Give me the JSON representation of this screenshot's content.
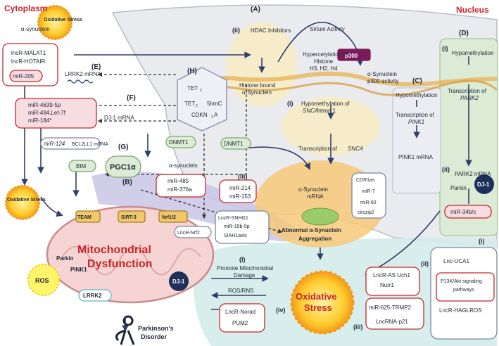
{
  "labels": {
    "cytoplasm": "Cytoplasm",
    "nucleus": "Nucleus",
    "oxidative_stress_top": "Oxidative Stress",
    "alpha_syn_top": "α-synuclein",
    "sec_A": "(A)",
    "sec_B": "(B)",
    "sec_C": "(C)",
    "sec_D": "(D)",
    "sec_E": "(E)",
    "sec_F": "(F)",
    "sec_G": "(G)",
    "sec_H": "(H)",
    "a_ii": "(ii)",
    "hdac": "HDAC Inhibitors",
    "sirtuin": "Sirtuin Acitivty",
    "histone_bound_1": "Histone bound",
    "histone_bound_2": "α-Synuclein",
    "hyper_1": "Hypercetylation of",
    "hyper_2": "Histone",
    "hyper_3": "H3, H2, H4",
    "asyn_p300_1": "α-Synuclein",
    "asyn_p300_2": "p300 activity",
    "p300": "p300",
    "a_i": "(i)",
    "hypo_snca_1": "Hypomethylation of",
    "hypo_snca_2": "SNCA",
    "hypo_snca_2b": " Intron 1",
    "trans_snca": "Transcription of ",
    "snca": "SNCA",
    "c_hypo": "Hypomethylation",
    "trans_pink1_1": "Transcription of",
    "pink1_it": "PINK1",
    "pink1_mrna": "PINK1 mRNA",
    "d_i": "(i)",
    "d_hypo": "Hypomethylation",
    "d_trans_1": "Transcription of",
    "park2": "PARK2",
    "d_ii": "(ii)",
    "park2_mrna": "PARK2 mRNA",
    "parkin_d": "Parkin",
    "dj1_d": "DJ-1",
    "mir34": "miR-34b/c",
    "lnc_malat": "lncR-MALAT1",
    "lnc_hotair": "lncR-HOTAIR",
    "mir205": "miR-205",
    "lrrk2_mrna": "LRRK2 mRNA",
    "f_1": "miR-4639-5p",
    "f_2": "miR-494,Let-7f",
    "f_3": "miR-184*",
    "dj1_mrna": "DJ-1 mRNA",
    "mir124": "miR-124",
    "bcl": "BCL2LL1 mRNA",
    "bim": "BIM",
    "tet2_a": "TET",
    "tet_sub": "2",
    "fivehmc": "5hmC",
    "tet2_b": "TET",
    "cdkn": "CDKN",
    "cdkn_sub": "2",
    "cdkn_end": "A",
    "dnmt1_a": "DNMT1",
    "dnmt1_b": "DNMT1",
    "alpha_syn_mid": "α-synuclein",
    "pgc": "PGC1α",
    "mir485": "miR-485",
    "mir376": "miR-376a",
    "oxid_left": "Oxidative Stress",
    "team": "TEAM",
    "sirt3": "SIRT-3",
    "nrf": "Nrf1/2",
    "lnc_nrf": "LncR-Nrf2",
    "parkin": "Parkin",
    "pink1": "PINK1",
    "ros": "ROS",
    "lrrk2": "LRRK2",
    "dj1": "DJ-1",
    "mito_1": "Mitochondrial",
    "mito_2": "Dysfunction",
    "pd_1": "Parkinson's",
    "pd_2": "Disorder",
    "iii": "(iii)",
    "mir214": "miR-214",
    "mir153": "miR-153",
    "snhg": "LncR-SNHG1",
    "mir15b": "miR-15b-5p",
    "siah": "SIAH1axis",
    "asyn_mrna_1": "α-Synuclein",
    "asyn_mrna_2": "mRNA",
    "cdr1": "CDR1as",
    "mir7": "miR-7",
    "mir60": "miR-60",
    "circ": "circzip2",
    "abn_1": "Abnormal α-Synuclein",
    "abn_2": "Aggregation",
    "os_i": "(I)",
    "promote_1": "Promote Mitochondrial",
    "promote_2": "Damage",
    "rosrns": "ROS/RNS",
    "os_main_1": "Oxidative",
    "os_main_2": "Stress",
    "os_ii": "(ii)",
    "lnc_as": "LncR-AS Uch1",
    "nurr": "Nurr1",
    "os_iv": "(iv)",
    "lnc_norad": "LncR-Norad",
    "pum2": "PUM2",
    "os_iii": "(iii)",
    "mir625": "miR-625-TRMP2",
    "lnc_p21": "LncRNA-p21",
    "os_i2": "(i)",
    "lnc_uca": "Lnc-UCA1",
    "p13_1": "P13K/Akt signaling",
    "p13_2": "pathways",
    "lnc_hag": "LncR-HAGLROS"
  },
  "colors": {
    "red": "#c8262b",
    "navy": "#2f3f6b",
    "nucleus_fill": "#e9ebee",
    "dna_yellow": "#f2c76a",
    "os_yellow": "#ffd23a",
    "pink": "#f7dce2",
    "teal": "#d4ecea",
    "green": "#dcebd6",
    "purple": "#c9c5e6",
    "mito": "#f6d4d4"
  },
  "icons": [
    "oxidative-stress-sun-icon",
    "dna-icon",
    "mrna-wave-icon",
    "up-arrow-icon",
    "down-arrow-icon",
    "human-figure-icon"
  ]
}
